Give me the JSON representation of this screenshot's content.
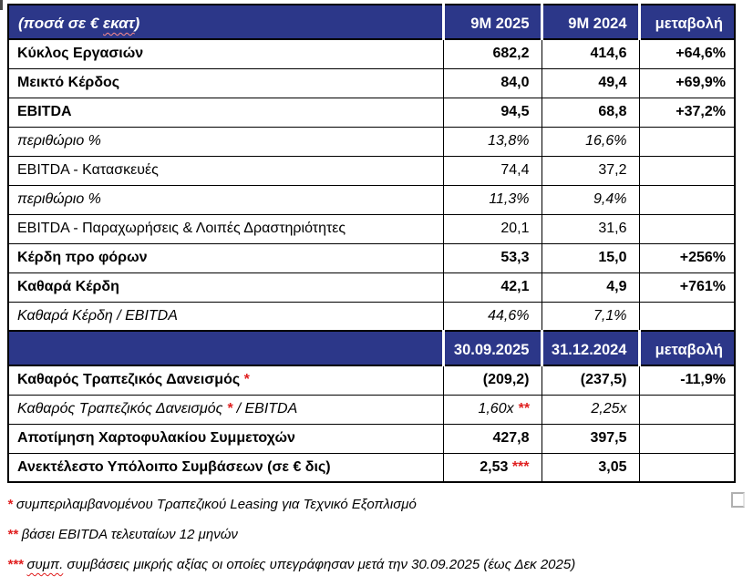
{
  "colors": {
    "header_bg": "#2C3789",
    "header_text": "#FFFFFF",
    "accent_red": "#E01F1F",
    "squiggle_pink": "#FF8A8A",
    "border": "#000000"
  },
  "table": {
    "header1": {
      "title_pre": "(ποσά σε € ",
      "title_squiggle": "εκατ",
      "title_post": ")",
      "cols": [
        "9M 2025",
        "9M 2024",
        "μεταβολή"
      ]
    },
    "section1_rows": [
      {
        "label": "Κύκλος Εργασιών",
        "v1": "682,2",
        "v2": "414,6",
        "chg": "+64,6%",
        "style": "bold"
      },
      {
        "label": "Μεικτό Κέρδος",
        "v1": "84,0",
        "v2": "49,4",
        "chg": "+69,9%",
        "style": "bold"
      },
      {
        "label": "EBITDA",
        "v1": "94,5",
        "v2": "68,8",
        "chg": "+37,2%",
        "style": "bold"
      },
      {
        "label": "περιθώριο %",
        "v1": "13,8%",
        "v2": "16,6%",
        "chg": "",
        "style": "italic"
      },
      {
        "label": "EBITDA - Κατασκευές",
        "v1": "74,4",
        "v2": "37,2",
        "chg": "",
        "style": "regular"
      },
      {
        "label": "περιθώριο %",
        "v1": "11,3%",
        "v2": "9,4%",
        "chg": "",
        "style": "italic"
      },
      {
        "label": "EBITDA - Παραχωρήσεις & Λοιπές Δραστηριότητες",
        "v1": "20,1",
        "v2": "31,6",
        "chg": "",
        "style": "regular"
      },
      {
        "label": "Κέρδη προ φόρων",
        "v1": "53,3",
        "v2": "15,0",
        "chg": "+256%",
        "style": "bold"
      },
      {
        "label": "Καθαρά Κέρδη",
        "v1": "42,1",
        "v2": "4,9",
        "chg": "+761%",
        "style": "bold"
      },
      {
        "label": "Καθαρά Κέρδη / EBITDA",
        "v1": "44,6%",
        "v2": "7,1%",
        "chg": "",
        "style": "italic"
      }
    ],
    "header2": {
      "title_pre": "",
      "title_squiggle": "",
      "title_post": "",
      "cols": [
        "30.09.2025",
        "31.12.2024",
        "μεταβολή"
      ]
    },
    "section2_rows": [
      {
        "label": "Καθαρός Τραπεζικός Δανεισμός",
        "label_star": "*",
        "v1": "(209,2)",
        "v2": "(237,5)",
        "chg": "-11,9%",
        "style": "bold"
      },
      {
        "label": "Καθαρός Τραπεζικός Δανεισμός",
        "label_star": "*",
        "label_rest": " / EBITDA",
        "v1": "1,60x",
        "v1_star": "**",
        "v2": "2,25x",
        "chg": "",
        "style": "italic"
      },
      {
        "label": "Αποτίμηση Χαρτοφυλακίου Συμμετοχών",
        "v1": "427,8",
        "v2": "397,5",
        "chg": "",
        "style": "bold"
      },
      {
        "label": "Ανεκτέλεστο Υπόλοιπο Συμβάσεων (σε € δις)",
        "v1": "2,53",
        "v1_star": "***",
        "v2": "3,05",
        "chg": "",
        "style": "bold"
      }
    ]
  },
  "footnotes": [
    {
      "stars": "*",
      "squiggle": "",
      "text": "συμπεριλαμβανομένου Τραπεζικού Leasing για Τεχνικό Εξοπλισμό"
    },
    {
      "stars": "**",
      "squiggle": "",
      "text": "βάσει EBITDA τελευταίων 12 μηνών"
    },
    {
      "stars": "***",
      "squiggle": "συμπ.",
      "text": " συμβάσεις μικρής αξίας οι οποίες υπεγράφησαν μετά την 30.09.2025 (έως Δεκ 2025)"
    }
  ]
}
